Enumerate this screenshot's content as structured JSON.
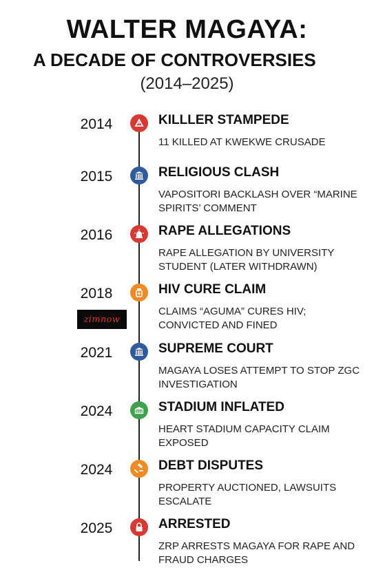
{
  "header": {
    "title": "WALTER MAGAYA:",
    "subtitle": "A DECADE OF CONTROVERSIES",
    "years": "(2014–2025)"
  },
  "watermark": {
    "text": "zimnow"
  },
  "events": [
    {
      "year": "2014",
      "heading": "KILLLER STAMPEDE",
      "description": "11 KILLED AT KWEKWE CRUSADE",
      "color": "#d63a33",
      "icon": "warning-icon"
    },
    {
      "year": "2015",
      "heading": "RELIGIOUS CLASH",
      "description": "VAPOSITORI BACKLASH OVER “MARINE SPIRITS’ COMMENT",
      "color": "#2f5a9e",
      "icon": "courthouse-icon"
    },
    {
      "year": "2016",
      "heading": "RAPE ALLEGATIONS",
      "description": "RAPE ALLEGATION BY UNIVERSITY STUDENT (LATER WITHDRAWN)",
      "color": "#d63a33",
      "icon": "siren-icon"
    },
    {
      "year": "2018",
      "heading": "HIV CURE CLAIM",
      "description": "CLAIMS “AGUMA” CURES HIV; CONVICTED AND FINED",
      "color": "#f08a22",
      "icon": "medicine-icon"
    },
    {
      "year": "2021",
      "heading": "SUPREME COURT",
      "description": "MAGAYA LOSES ATTEMPT TO STOP ZGC INVESTIGATION",
      "color": "#2f5a9e",
      "icon": "courthouse-icon"
    },
    {
      "year": "2024",
      "heading": "STADIUM INFLATED",
      "description": "HEART STADIUM CAPACITY CLAIM EXPOSED",
      "color": "#3fa34d",
      "icon": "stadium-icon"
    },
    {
      "year": "2024",
      "heading": "DEBT DISPUTES",
      "description": "PROPERTY AUCTIONED, LAWSUITS ESCALATE",
      "color": "#f08a22",
      "icon": "gavel-icon"
    },
    {
      "year": "2025",
      "heading": "ARRESTED",
      "description": "ZRP ARRESTS MAGAYA FOR RAPE AND FRAUD CHARGES",
      "color": "#d63a33",
      "icon": "lock-icon"
    }
  ]
}
